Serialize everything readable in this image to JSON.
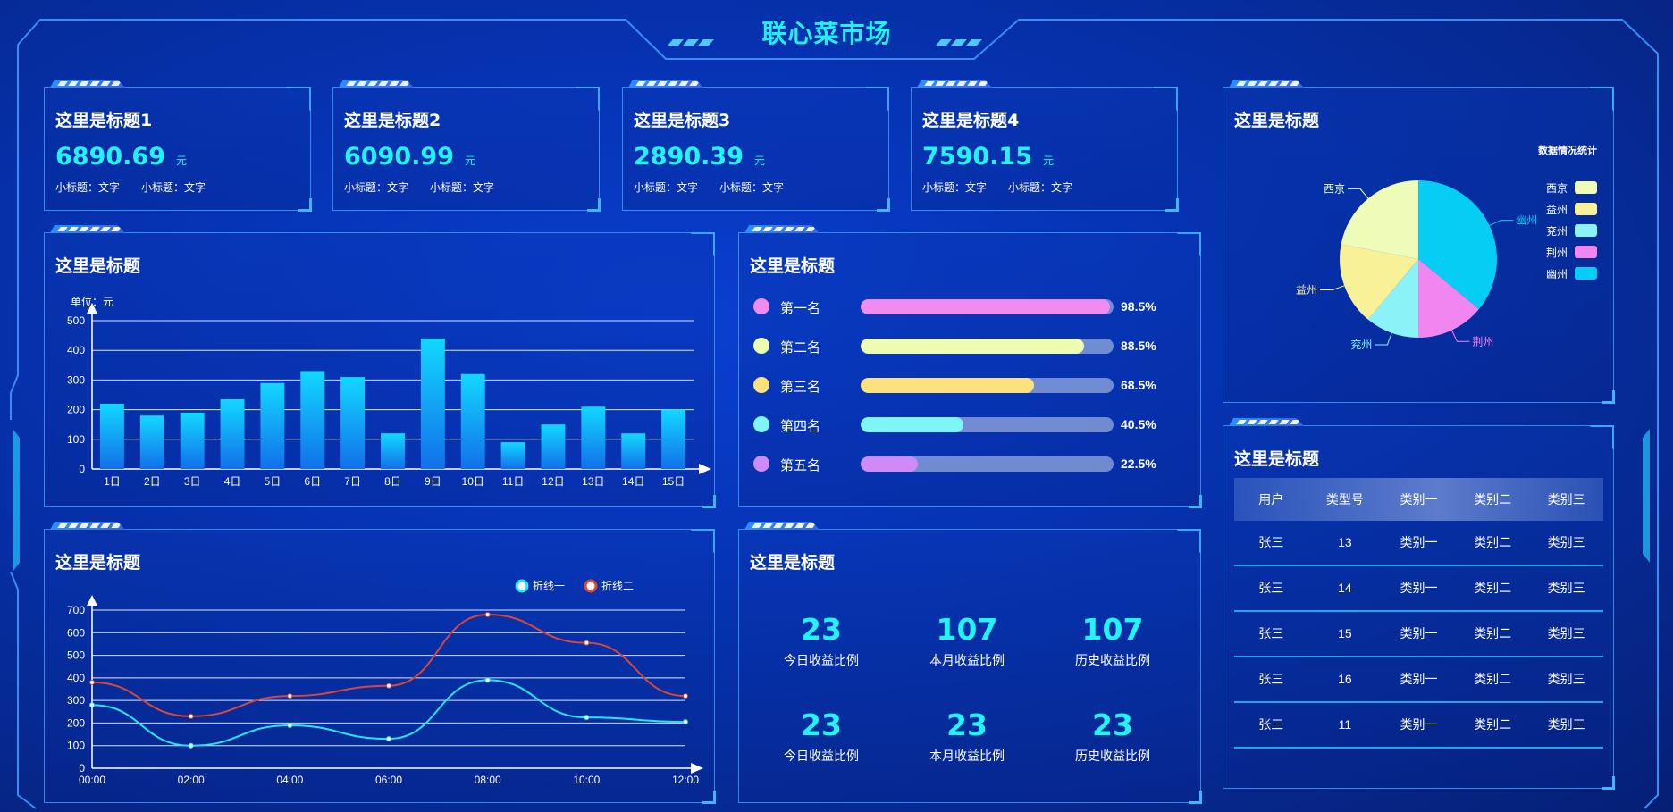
{
  "header": {
    "title": "联心菜市场"
  },
  "stats": [
    {
      "title": "这里是标题1",
      "value": "6890.69",
      "unit": "元",
      "sub1": "小标题：文字",
      "sub2": "小标题：文字"
    },
    {
      "title": "这里是标题2",
      "value": "6090.99",
      "unit": "元",
      "sub1": "小标题：文字",
      "sub2": "小标题：文字"
    },
    {
      "title": "这里是标题3",
      "value": "2890.39",
      "unit": "元",
      "sub1": "小标题：文字",
      "sub2": "小标题：文字"
    },
    {
      "title": "这里是标题4",
      "value": "7590.15",
      "unit": "元",
      "sub1": "小标题：文字",
      "sub2": "小标题：文字"
    }
  ],
  "bar_panel": {
    "title": "这里是标题"
  },
  "rank_panel": {
    "title": "这里是标题",
    "items": [
      {
        "label": "第一名",
        "value": 98.5,
        "pct": "98.5%",
        "color": "#f18bf0"
      },
      {
        "label": "第二名",
        "value": 88.5,
        "pct": "88.5%",
        "color": "#eefcb2"
      },
      {
        "label": "第三名",
        "value": 68.5,
        "pct": "68.5%",
        "color": "#fbe27f"
      },
      {
        "label": "第四名",
        "value": 40.5,
        "pct": "40.5%",
        "color": "#7ff5f8"
      },
      {
        "label": "第五名",
        "value": 22.5,
        "pct": "22.5%",
        "color": "#cf8af7"
      }
    ]
  },
  "line_panel": {
    "title": "这里是标题"
  },
  "numbers_panel": {
    "title": "这里是标题",
    "cells": [
      {
        "value": "23",
        "label": "今日收益比例"
      },
      {
        "value": "107",
        "label": "本月收益比例"
      },
      {
        "value": "107",
        "label": "历史收益比例"
      },
      {
        "value": "23",
        "label": "今日收益比例"
      },
      {
        "value": "23",
        "label": "本月收益比例"
      },
      {
        "value": "23",
        "label": "历史收益比例"
      }
    ]
  },
  "pie_panel": {
    "title": "这里是标题"
  },
  "table_panel": {
    "title": "这里是标题",
    "headers": [
      "用户",
      "类型号",
      "类别一",
      "类别二",
      "类别三"
    ],
    "rows": [
      [
        "张三",
        "13",
        "类别一",
        "类别二",
        "类别三"
      ],
      [
        "张三",
        "14",
        "类别一",
        "类别二",
        "类别三"
      ],
      [
        "张三",
        "15",
        "类别一",
        "类别二",
        "类别三"
      ],
      [
        "张三",
        "16",
        "类别一",
        "类别二",
        "类别三"
      ],
      [
        "张三",
        "11",
        "类别一",
        "类别二",
        "类别三"
      ]
    ]
  },
  "chart_data": [
    {
      "type": "bar",
      "ylabel": "单位：元",
      "categories": [
        "1日",
        "2日",
        "3日",
        "4日",
        "5日",
        "6日",
        "7日",
        "8日",
        "9日",
        "10日",
        "11日",
        "12日",
        "13日",
        "14日",
        "15日"
      ],
      "values": [
        220,
        180,
        190,
        235,
        290,
        330,
        310,
        120,
        440,
        320,
        90,
        150,
        210,
        120,
        200
      ],
      "yticks": [
        "0",
        "100",
        "200",
        "300",
        "400",
        "500"
      ],
      "ylim": [
        0,
        500
      ],
      "grid": true
    },
    {
      "type": "line",
      "x": [
        "00:00",
        "02:00",
        "04:00",
        "06:00",
        "08:00",
        "10:00",
        "12:00"
      ],
      "series": [
        {
          "name": "折线一",
          "values": [
            280,
            100,
            190,
            130,
            390,
            225,
            205
          ],
          "color": "#26e5f2"
        },
        {
          "name": "折线二",
          "values": [
            380,
            230,
            320,
            365,
            680,
            555,
            320
          ],
          "color": "#d9463a"
        }
      ],
      "yticks": [
        "0",
        "100",
        "200",
        "300",
        "400",
        "500",
        "600",
        "700"
      ],
      "ylim": [
        0,
        700
      ],
      "grid": true,
      "legend": "top-right"
    },
    {
      "type": "pie",
      "title": "数据情况统计",
      "slices": [
        {
          "name": "西京",
          "value": 22,
          "color": "#eefcb8"
        },
        {
          "name": "益州",
          "value": 17,
          "color": "#f9f198"
        },
        {
          "name": "兖州",
          "value": 11,
          "color": "#8bf3f8"
        },
        {
          "name": "荆州",
          "value": 14,
          "color": "#f186f1"
        },
        {
          "name": "幽州",
          "value": 36,
          "color": "#06cdf4"
        }
      ],
      "legend": "right"
    }
  ]
}
